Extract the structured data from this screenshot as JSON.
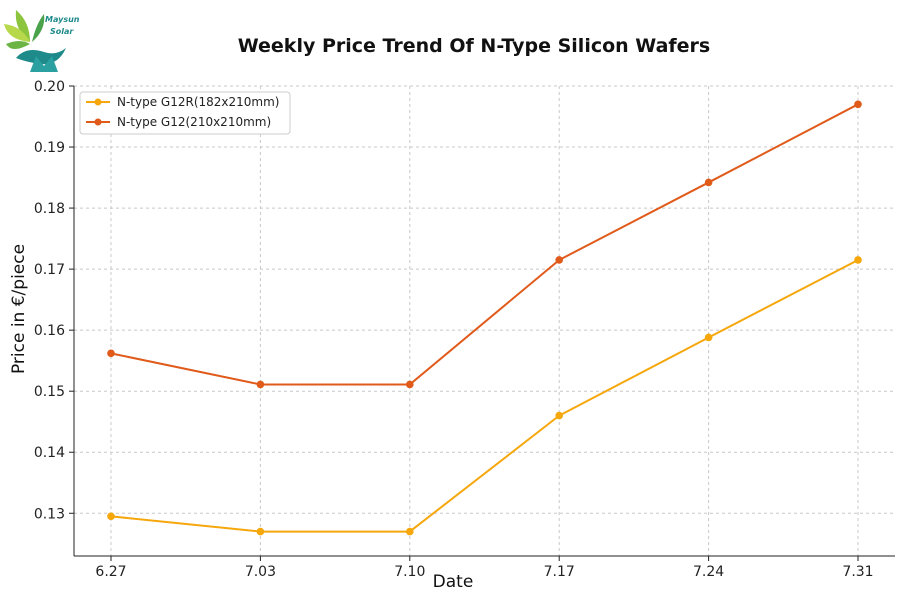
{
  "logo": {
    "line1": "Maysun",
    "line2": "Solar"
  },
  "chart_data": {
    "type": "line",
    "title": "Weekly Price Trend Of N-Type Silicon Wafers",
    "xlabel": "Date",
    "ylabel": "Price in €/piece",
    "categories": [
      "6.27",
      "7.03",
      "7.10",
      "7.17",
      "7.24",
      "7.31"
    ],
    "ylim": [
      0.123,
      0.2
    ],
    "yticks": [
      "0.13",
      "0.14",
      "0.15",
      "0.16",
      "0.17",
      "0.18",
      "0.19",
      "0.20"
    ],
    "grid": true,
    "legend_position": "top-left",
    "series": [
      {
        "name": "N-type G12R(182x210mm)",
        "color": "#f5a70c",
        "values": [
          0.1295,
          0.127,
          0.127,
          0.146,
          0.1588,
          0.1715
        ]
      },
      {
        "name": "N-type G12(210x210mm)",
        "color": "#e05a1a",
        "values": [
          0.1562,
          0.1511,
          0.1511,
          0.1715,
          0.1842,
          0.197
        ]
      }
    ]
  }
}
